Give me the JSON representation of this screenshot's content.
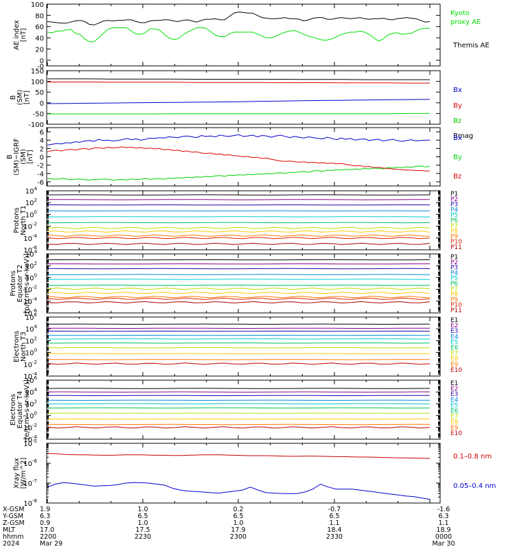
{
  "chart_data": [
    {
      "type": "line",
      "ylabel": [
        "AE index",
        "[nT]"
      ],
      "ylim": [
        -10,
        100
      ],
      "ylog": false,
      "yticks": [
        "-0",
        "0",
        "20",
        "40",
        "60",
        "80",
        "100"
      ],
      "yticks_values": [
        -10,
        0,
        20,
        40,
        60,
        80,
        100
      ],
      "legend_placement": "right",
      "series": [
        {
          "name": "Kyoto proxy AE",
          "color": "#00e000",
          "style": "smooth",
          "values": [
            50,
            49,
            52,
            52,
            54,
            55,
            48,
            46,
            38,
            33,
            33,
            40,
            48,
            55,
            58,
            58,
            58,
            58,
            52,
            47,
            46,
            49,
            56,
            56,
            54,
            47,
            40,
            37,
            38,
            45,
            50,
            54,
            58,
            58,
            57,
            51,
            45,
            42,
            42,
            47,
            50,
            50,
            50,
            50,
            50,
            47,
            43,
            40,
            40,
            43,
            47,
            50,
            52,
            53,
            50,
            46,
            43,
            41,
            38,
            36,
            36,
            38,
            42,
            46,
            48,
            50,
            50,
            52,
            50,
            46,
            40,
            34,
            38,
            45,
            48,
            49,
            46,
            47,
            48,
            52,
            56,
            57,
            57
          ]
        },
        {
          "name": "Themis AE",
          "color": "#000000",
          "style": "smooth",
          "values": [
            69,
            68,
            67,
            66,
            66,
            68,
            70,
            71,
            69,
            64,
            63,
            66,
            70,
            71,
            70,
            71,
            71,
            72,
            72,
            69,
            67,
            67,
            70,
            71,
            71,
            72,
            72,
            70,
            69,
            71,
            72,
            70,
            68,
            71,
            73,
            73,
            74,
            72,
            72,
            78,
            84,
            86,
            85,
            84,
            84,
            80,
            76,
            75,
            74,
            74,
            75,
            76,
            74,
            74,
            73,
            70,
            72,
            75,
            76,
            76,
            73,
            73,
            75,
            76,
            75,
            74,
            75,
            76,
            74,
            73,
            74,
            74,
            75,
            73,
            72,
            74,
            75,
            76,
            75,
            74,
            71,
            68,
            69
          ]
        }
      ]
    },
    {
      "type": "line",
      "ylabel": [
        "B",
        "(SM)",
        "[nT]"
      ],
      "ylim": [
        -100,
        150
      ],
      "ylog": false,
      "yticks": [
        "-100",
        "-50",
        "0",
        "50",
        "100",
        "150"
      ],
      "yticks_values": [
        -100,
        -50,
        0,
        50,
        100,
        150
      ],
      "legend_placement": "right",
      "series": [
        {
          "name": "Bx",
          "color": "#0000cc",
          "style": "straight",
          "values": [
            -4,
            -3,
            -2,
            -1,
            0,
            1,
            2,
            3,
            4,
            5,
            7,
            8,
            10,
            11,
            12,
            13,
            14,
            15,
            16
          ]
        },
        {
          "name": "By",
          "color": "#dd0000",
          "style": "straight",
          "values": [
            97,
            97,
            97,
            96,
            96,
            96,
            96,
            95,
            95,
            95,
            95,
            94,
            94,
            94,
            93,
            93,
            93,
            92,
            92
          ]
        },
        {
          "name": "Bz",
          "color": "#00d000",
          "style": "straight",
          "values": [
            -52,
            -52,
            -52,
            -52,
            -52,
            -52,
            -51,
            -51,
            -51,
            -51,
            -51,
            -51,
            -51,
            -51,
            -51,
            -51,
            -51,
            -50,
            -50
          ]
        },
        {
          "name": "Bmag",
          "color": "#000000",
          "style": "straight",
          "values": [
            112,
            112,
            112,
            111,
            111,
            111,
            111,
            110,
            110,
            110,
            110,
            110,
            109,
            109,
            109,
            108,
            108,
            108,
            108
          ]
        }
      ]
    },
    {
      "type": "line",
      "ylabel": [
        "B",
        "(SM)−IGRF",
        "(SM)",
        "[nT]"
      ],
      "ylim": [
        -7,
        7
      ],
      "ylog": false,
      "yticks": [
        "-6",
        "-4",
        "-2",
        "0",
        "2",
        "4",
        "6"
      ],
      "yticks_values": [
        -6,
        -4,
        -2,
        0,
        2,
        4,
        6
      ],
      "legend_placement": "right",
      "series": [
        {
          "name": "Bx",
          "color": "#0000cc",
          "style": "jagged",
          "values": [
            2.8,
            3.0,
            3.2,
            3.1,
            3.4,
            3.3,
            3.6,
            3.5,
            3.8,
            3.9,
            3.7,
            4.2,
            3.9,
            4.0,
            3.8,
            3.9,
            4.1,
            4.4,
            4.1,
            4.3,
            4.0,
            4.2,
            4.5,
            4.4,
            4.6,
            4.5,
            4.8,
            4.7,
            4.6,
            4.9,
            5.0,
            4.8,
            4.6,
            5.1,
            4.9,
            5.0,
            4.8,
            5.2,
            5.0,
            4.9,
            5.1,
            5.3,
            4.9,
            5.0,
            5.2,
            4.8,
            5.1,
            5.0,
            4.7,
            5.0,
            5.2,
            4.9,
            4.6,
            4.9,
            4.7,
            4.5,
            4.8,
            4.6,
            4.4,
            4.3,
            4.7,
            4.4,
            4.1,
            4.5,
            4.2,
            4.4,
            4.0,
            4.2,
            4.3,
            3.9,
            4.1,
            4.2,
            3.8,
            4.0,
            4.2,
            3.9,
            3.7,
            3.9,
            4.1,
            3.8,
            3.9,
            4.0,
            4.0
          ]
        },
        {
          "name": "By",
          "color": "#00d000",
          "style": "jagged",
          "values": [
            -5.2,
            -5.3,
            -5.4,
            -5.2,
            -5.3,
            -5.5,
            -5.4,
            -5.3,
            -5.5,
            -5.6,
            -5.4,
            -5.5,
            -5.3,
            -5.4,
            -5.6,
            -5.5,
            -5.4,
            -5.6,
            -5.3,
            -5.5,
            -5.4,
            -5.2,
            -5.4,
            -5.3,
            -5.2,
            -5.4,
            -5.1,
            -5.2,
            -5.0,
            -5.1,
            -4.9,
            -5.0,
            -4.8,
            -4.9,
            -4.7,
            -4.8,
            -4.6,
            -4.5,
            -4.7,
            -4.4,
            -4.5,
            -4.3,
            -4.4,
            -4.2,
            -4.3,
            -4.1,
            -4.2,
            -4.0,
            -4.1,
            -3.9,
            -3.8,
            -4.0,
            -3.7,
            -3.8,
            -3.6,
            -3.5,
            -3.7,
            -3.4,
            -3.3,
            -3.5,
            -3.2,
            -3.3,
            -3.1,
            -3.2,
            -3.0,
            -3.1,
            -2.9,
            -3.0,
            -2.8,
            -2.9,
            -2.7,
            -2.8,
            -2.9,
            -2.6,
            -2.7,
            -2.5,
            -2.6,
            -2.4,
            -2.5,
            -2.3,
            -2.2,
            -2.4,
            -2.3
          ]
        },
        {
          "name": "Bz",
          "color": "#dd0000",
          "style": "jagged",
          "values": [
            1.2,
            1.5,
            1.6,
            1.4,
            1.7,
            1.8,
            1.6,
            1.9,
            2.0,
            1.8,
            2.1,
            2.2,
            2.0,
            2.3,
            2.1,
            2.2,
            2.4,
            2.2,
            2.3,
            2.1,
            2.2,
            2.0,
            2.1,
            1.9,
            2.0,
            1.7,
            1.8,
            1.5,
            1.6,
            1.3,
            1.4,
            1.1,
            1.2,
            0.9,
            0.8,
            0.9,
            0.6,
            0.7,
            0.4,
            0.5,
            0.3,
            0.2,
            0.0,
            0.1,
            -0.2,
            -0.1,
            -0.4,
            -0.3,
            -0.6,
            -0.8,
            -1.0,
            -1.1,
            -1.0,
            -1.2,
            -1.3,
            -1.2,
            -1.4,
            -1.3,
            -1.5,
            -1.4,
            -1.6,
            -1.5,
            -1.7,
            -1.6,
            -1.8,
            -2.0,
            -2.2,
            -2.1,
            -2.4,
            -2.3,
            -2.6,
            -2.5,
            -2.7,
            -2.8,
            -2.9,
            -3.0,
            -3.1,
            -3.2,
            -3.2,
            -3.3,
            -3.3,
            -3.4,
            -3.4
          ]
        }
      ]
    },
    {
      "type": "line",
      "ylabel": [
        "Protons",
        "North T1"
      ],
      "ylim": [
        -6,
        4
      ],
      "ylog": true,
      "ytick_exponents": [
        -6,
        -4,
        -2,
        0,
        2,
        4
      ],
      "legend_placement": "right",
      "series": [
        {
          "name": "P1",
          "color": "#000000",
          "value": 3.3
        },
        {
          "name": "P2",
          "color": "#880088",
          "value": 2.5
        },
        {
          "name": "P3",
          "color": "#2200aa",
          "value": 1.6
        },
        {
          "name": "P4",
          "color": "#0088dd",
          "value": 0.6
        },
        {
          "name": "P5",
          "color": "#00cccc",
          "value": -0.4
        },
        {
          "name": "P6",
          "color": "#00c060",
          "value": -1.4
        },
        {
          "name": "P7",
          "color": "#b8e000",
          "value": -2.3
        },
        {
          "name": "P8",
          "color": "#ffc800",
          "value": -2.9
        },
        {
          "name": "P9",
          "color": "#ff7700",
          "value": -3.6
        },
        {
          "name": "P10",
          "color": "#dd2200",
          "value": -4.0
        },
        {
          "name": "P11",
          "color": "#aa0000",
          "value": -5.0
        }
      ]
    },
    {
      "type": "line",
      "ylabel": [
        "Protons",
        "Equator T2",
        "[p/(cm²-s-sr-keV)]"
      ],
      "ylim": [
        -6,
        4
      ],
      "ylog": true,
      "ytick_exponents": [
        -6,
        -4,
        -2,
        0,
        2,
        4
      ],
      "legend_placement": "right",
      "series": [
        {
          "name": "P1",
          "color": "#000000",
          "value": 3.0
        },
        {
          "name": "P2",
          "color": "#880088",
          "value": 2.3
        },
        {
          "name": "P3",
          "color": "#2200aa",
          "value": 1.5
        },
        {
          "name": "P4",
          "color": "#0088dd",
          "value": 0.5
        },
        {
          "name": "P5",
          "color": "#00cccc",
          "value": -0.3
        },
        {
          "name": "P6",
          "color": "#00c060",
          "value": -1.3
        },
        {
          "name": "P7",
          "color": "#b8e000",
          "value": -1.9
        },
        {
          "name": "P8",
          "color": "#ffc800",
          "value": -2.6
        },
        {
          "name": "P9",
          "color": "#ff7700",
          "value": -3.3
        },
        {
          "name": "P10",
          "color": "#dd2200",
          "value": -3.6
        },
        {
          "name": "P11",
          "color": "#aa0000",
          "value": -4.2
        }
      ]
    },
    {
      "type": "line",
      "ylabel": [
        "Electrons",
        "North T3"
      ],
      "ylim": [
        -4,
        6
      ],
      "ylog": true,
      "ytick_exponents": [
        -4,
        -2,
        0,
        2,
        4,
        6
      ],
      "legend_placement": "right",
      "series": [
        {
          "name": "E1",
          "color": "#000000",
          "value": 4.8
        },
        {
          "name": "E2",
          "color": "#880088",
          "value": 4.1
        },
        {
          "name": "E3",
          "color": "#2200aa",
          "value": 3.6
        },
        {
          "name": "E4",
          "color": "#0088dd",
          "value": 2.9
        },
        {
          "name": "E5",
          "color": "#00cccc",
          "value": 2.3
        },
        {
          "name": "E6",
          "color": "#00c060",
          "value": 1.6
        },
        {
          "name": "E7",
          "color": "#b8e000",
          "value": 0.8
        },
        {
          "name": "E8",
          "color": "#ffc800",
          "value": -0.2
        },
        {
          "name": "E9",
          "color": "#ff7700",
          "value": -1.2
        },
        {
          "name": "E10",
          "color": "#bb0000",
          "value": -1.9
        }
      ]
    },
    {
      "type": "line",
      "ylabel": [
        "Electrons",
        "Equator T4",
        "[e/(cm²-s-sr-keV)]"
      ],
      "ylim": [
        -4,
        6
      ],
      "ylog": true,
      "ytick_exponents": [
        -4,
        -2,
        0,
        2,
        4,
        6
      ],
      "legend_placement": "right",
      "series": [
        {
          "name": "E1",
          "color": "#000000",
          "value": 4.6
        },
        {
          "name": "E2",
          "color": "#880088",
          "value": 4.0
        },
        {
          "name": "E3",
          "color": "#2200aa",
          "value": 3.4
        },
        {
          "name": "E4",
          "color": "#0088dd",
          "value": 2.6
        },
        {
          "name": "E5",
          "color": "#00cccc",
          "value": 2.0
        },
        {
          "name": "E6",
          "color": "#00c060",
          "value": 1.3
        },
        {
          "name": "E7",
          "color": "#b8e000",
          "value": 0.4
        },
        {
          "name": "E8",
          "color": "#ffc800",
          "value": -0.6
        },
        {
          "name": "E9",
          "color": "#ff7700",
          "value": -1.5
        },
        {
          "name": "E10",
          "color": "#bb0000",
          "value": -2.0
        }
      ]
    },
    {
      "type": "line",
      "ylabel": [
        "Xray flux",
        "[W/m^2]"
      ],
      "ylim": [
        -8,
        -5
      ],
      "ylog": true,
      "ytick_exponents": [
        -8,
        -7,
        -6,
        -5
      ],
      "legend_placement": "right",
      "series": [
        {
          "name": "0.1–0.8 nm",
          "color": "#cc0000",
          "style": "smooth",
          "values": [
            -5.5,
            -5.52,
            -5.55,
            -5.57,
            -5.58,
            -5.58,
            -5.59,
            -5.6,
            -5.6,
            -5.59,
            -5.58,
            -5.58,
            -5.58,
            -5.59,
            -5.6,
            -5.6,
            -5.61,
            -5.61,
            -5.6,
            -5.59,
            -5.58,
            -5.58,
            -5.58,
            -5.59,
            -5.6,
            -5.61,
            -5.62,
            -5.62,
            -5.62,
            -5.63,
            -5.64,
            -5.65,
            -5.65,
            -5.64,
            -5.64,
            -5.65,
            -5.66,
            -5.67,
            -5.67,
            -5.68,
            -5.69,
            -5.69,
            -5.7,
            -5.71,
            -5.72,
            -5.73,
            -5.73,
            -5.74,
            -5.75,
            -5.76
          ]
        },
        {
          "name": "0.05–0.4 nm",
          "color": "#0000cc",
          "style": "smooth",
          "values": [
            -7.2,
            -7.05,
            -6.98,
            -7.0,
            -7.05,
            -7.1,
            -7.15,
            -7.13,
            -7.12,
            -7.08,
            -7.0,
            -6.97,
            -6.98,
            -7.0,
            -7.05,
            -7.1,
            -7.25,
            -7.35,
            -7.4,
            -7.42,
            -7.45,
            -7.48,
            -7.5,
            -7.45,
            -7.4,
            -7.35,
            -7.2,
            -7.35,
            -7.48,
            -7.5,
            -7.52,
            -7.53,
            -7.52,
            -7.45,
            -7.3,
            -7.05,
            -7.2,
            -7.3,
            -7.3,
            -7.3,
            -7.35,
            -7.4,
            -7.45,
            -7.5,
            -7.55,
            -7.6,
            -7.65,
            -7.68,
            -7.75,
            -7.82
          ]
        }
      ]
    }
  ],
  "orbit_table": {
    "labels": [
      "X-GSM",
      "Y-GSM",
      "Z-GSM",
      "MLT",
      "hhmm",
      "2024"
    ],
    "columns": [
      [
        "1.9",
        "6.3",
        "0.9",
        "17.0",
        "2200",
        "Mar 29"
      ],
      [
        "1.0",
        "6.5",
        "1.0",
        "17.5",
        "2230",
        ""
      ],
      [
        "0.2",
        "6.5",
        "1.0",
        "17.9",
        "2300",
        ""
      ],
      [
        "-0.7",
        "6.5",
        "1.1",
        "18.4",
        "2330",
        ""
      ],
      [
        "-1.6",
        "6.3",
        "1.1",
        "18.9",
        "0000",
        "Mar 30"
      ]
    ]
  }
}
